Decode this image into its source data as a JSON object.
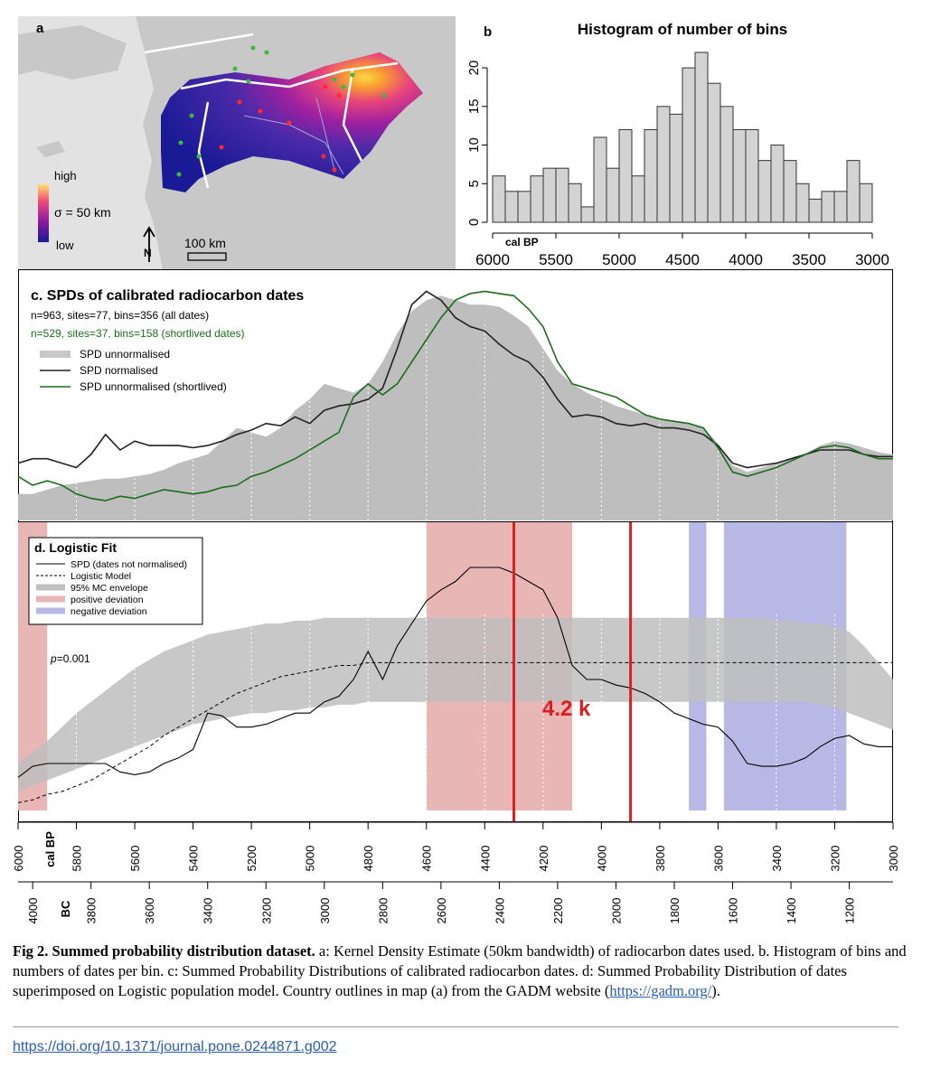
{
  "panel_a": {
    "letter": "a",
    "legend_high": "high",
    "legend_sigma": "σ = 50 km",
    "legend_low": "low",
    "scale_label": "100 km",
    "north_label": "N"
  },
  "panel_b": {
    "letter": "b",
    "title": "Histogram of number of bins",
    "axis_unit": "cal BP"
  },
  "panel_c": {
    "title": "c. SPDs of calibrated radiocarbon dates",
    "line1": "n=963, sites=77, bins=356 (all dates)",
    "line2": "n=529, sites=37, bins=158 (shortlived dates)",
    "legend": [
      "SPD unnormalised",
      "SPD normalised",
      "SPD unnormalised (shortlived)"
    ]
  },
  "panel_d": {
    "title": "d. Logistic Fit",
    "legend": [
      "SPD (dates not normalised)",
      "Logistic Model",
      "95% MC envelope",
      "positive deviation",
      "negative deviation"
    ],
    "p_label": "p",
    "p_value": "=0.001",
    "event_label": "4.2 k"
  },
  "axes": {
    "calbp_unit": "cal BP",
    "bc_unit": "BC",
    "calbp_ticks": [
      "6000",
      "5800",
      "5600",
      "5400",
      "5200",
      "5000",
      "4800",
      "4600",
      "4400",
      "4200",
      "4000",
      "3800",
      "3600",
      "3400",
      "3200",
      "3000"
    ],
    "bc_ticks": [
      "4000",
      "3800",
      "3600",
      "3400",
      "3200",
      "3000",
      "2800",
      "2600",
      "2400",
      "2200",
      "2000",
      "1800",
      "1600",
      "1400",
      "1200"
    ]
  },
  "chart_data": [
    {
      "type": "bar",
      "title": "Histogram of number of bins",
      "xlabel": "cal BP",
      "xlim": [
        6000,
        3000
      ],
      "ylim": [
        0,
        22
      ],
      "x_ticks": [
        "6000",
        "5500",
        "5000",
        "4500",
        "4000",
        "3500",
        "3000"
      ],
      "y_ticks": [
        "0",
        "5",
        "10",
        "15",
        "20"
      ],
      "bin_width": 100,
      "bin_starts": [
        6000,
        5900,
        5800,
        5700,
        5600,
        5500,
        5400,
        5300,
        5200,
        5100,
        5000,
        4900,
        4800,
        4700,
        4600,
        4500,
        4400,
        4300,
        4200,
        4100,
        4000,
        3900,
        3800,
        3700,
        3600,
        3500,
        3400,
        3300,
        3200,
        3100
      ],
      "values": [
        6,
        4,
        4,
        6,
        7,
        7,
        5,
        2,
        11,
        7,
        12,
        6,
        12,
        15,
        14,
        20,
        22,
        18,
        15,
        12,
        12,
        8,
        10,
        8,
        5,
        3,
        4,
        4,
        8,
        5
      ]
    },
    {
      "type": "line",
      "title": "c. SPDs of calibrated radiocarbon dates",
      "xlabel": "cal BP",
      "xlim": [
        6000,
        3000
      ],
      "x": [
        6000,
        5950,
        5900,
        5850,
        5800,
        5750,
        5700,
        5650,
        5600,
        5550,
        5500,
        5450,
        5400,
        5350,
        5300,
        5250,
        5200,
        5150,
        5100,
        5050,
        5000,
        4950,
        4900,
        4850,
        4800,
        4750,
        4700,
        4650,
        4600,
        4550,
        4500,
        4450,
        4400,
        4350,
        4300,
        4250,
        4200,
        4150,
        4100,
        4050,
        4000,
        3950,
        3900,
        3850,
        3800,
        3750,
        3700,
        3650,
        3600,
        3550,
        3500,
        3450,
        3400,
        3350,
        3300,
        3250,
        3200,
        3150,
        3100,
        3050,
        3000
      ],
      "series": [
        {
          "name": "SPD unnormalised",
          "values": [
            0.12,
            0.12,
            0.14,
            0.16,
            0.17,
            0.18,
            0.19,
            0.19,
            0.2,
            0.21,
            0.23,
            0.26,
            0.28,
            0.3,
            0.36,
            0.42,
            0.4,
            0.38,
            0.42,
            0.5,
            0.55,
            0.62,
            0.6,
            0.58,
            0.62,
            0.72,
            0.85,
            0.95,
            1.0,
            1.02,
            1.0,
            0.98,
            0.98,
            0.97,
            0.93,
            0.88,
            0.78,
            0.68,
            0.62,
            0.58,
            0.55,
            0.52,
            0.5,
            0.48,
            0.46,
            0.45,
            0.44,
            0.42,
            0.35,
            0.25,
            0.22,
            0.24,
            0.26,
            0.28,
            0.3,
            0.34,
            0.36,
            0.35,
            0.33,
            0.31,
            0.3
          ]
        },
        {
          "name": "SPD normalised",
          "values": [
            0.26,
            0.28,
            0.28,
            0.26,
            0.24,
            0.3,
            0.39,
            0.32,
            0.36,
            0.34,
            0.34,
            0.34,
            0.33,
            0.34,
            0.36,
            0.39,
            0.41,
            0.44,
            0.43,
            0.47,
            0.44,
            0.5,
            0.52,
            0.53,
            0.55,
            0.6,
            0.78,
            0.98,
            1.04,
            1.0,
            0.92,
            0.88,
            0.86,
            0.8,
            0.75,
            0.72,
            0.65,
            0.55,
            0.47,
            0.48,
            0.47,
            0.44,
            0.43,
            0.44,
            0.42,
            0.42,
            0.41,
            0.39,
            0.34,
            0.26,
            0.24,
            0.25,
            0.26,
            0.28,
            0.3,
            0.32,
            0.32,
            0.32,
            0.3,
            0.29,
            0.29
          ]
        },
        {
          "name": "SPD unnormalised (shortlived)",
          "values": [
            0.2,
            0.16,
            0.18,
            0.16,
            0.12,
            0.1,
            0.09,
            0.11,
            0.1,
            0.12,
            0.14,
            0.13,
            0.12,
            0.13,
            0.15,
            0.16,
            0.2,
            0.22,
            0.25,
            0.28,
            0.32,
            0.36,
            0.4,
            0.56,
            0.62,
            0.57,
            0.62,
            0.72,
            0.82,
            0.92,
            1.0,
            1.03,
            1.04,
            1.03,
            1.02,
            0.96,
            0.88,
            0.72,
            0.62,
            0.6,
            0.58,
            0.56,
            0.52,
            0.48,
            0.46,
            0.45,
            0.44,
            0.42,
            0.33,
            0.22,
            0.2,
            0.22,
            0.24,
            0.27,
            0.3,
            0.33,
            0.34,
            0.33,
            0.3,
            0.28,
            0.28
          ]
        }
      ]
    },
    {
      "type": "line",
      "title": "d. Logistic Fit",
      "xlabel": "cal BP",
      "xlim": [
        6000,
        3000
      ],
      "ylim": [
        0,
        1
      ],
      "x": [
        6000,
        5950,
        5900,
        5850,
        5800,
        5750,
        5700,
        5650,
        5600,
        5550,
        5500,
        5450,
        5400,
        5350,
        5300,
        5250,
        5200,
        5150,
        5100,
        5050,
        5000,
        4950,
        4900,
        4850,
        4800,
        4750,
        4700,
        4650,
        4600,
        4550,
        4500,
        4450,
        4400,
        4350,
        4300,
        4250,
        4200,
        4150,
        4100,
        4050,
        4000,
        3950,
        3900,
        3850,
        3800,
        3750,
        3700,
        3650,
        3600,
        3550,
        3500,
        3450,
        3400,
        3350,
        3300,
        3250,
        3200,
        3150,
        3100,
        3050,
        3000
      ],
      "series": [
        {
          "name": "SPD (dates not normalised)",
          "values": [
            0.15,
            0.19,
            0.2,
            0.2,
            0.2,
            0.2,
            0.2,
            0.17,
            0.16,
            0.17,
            0.2,
            0.22,
            0.25,
            0.38,
            0.37,
            0.33,
            0.33,
            0.34,
            0.36,
            0.38,
            0.38,
            0.42,
            0.44,
            0.5,
            0.6,
            0.5,
            0.62,
            0.7,
            0.78,
            0.82,
            0.85,
            0.9,
            0.9,
            0.9,
            0.88,
            0.85,
            0.82,
            0.72,
            0.55,
            0.5,
            0.5,
            0.48,
            0.47,
            0.45,
            0.42,
            0.38,
            0.36,
            0.34,
            0.33,
            0.28,
            0.2,
            0.19,
            0.19,
            0.2,
            0.22,
            0.26,
            0.29,
            0.3,
            0.27,
            0.26,
            0.26
          ]
        },
        {
          "name": "Logistic Model",
          "values": [
            0.06,
            0.07,
            0.09,
            0.1,
            0.12,
            0.14,
            0.17,
            0.2,
            0.23,
            0.26,
            0.3,
            0.33,
            0.36,
            0.39,
            0.42,
            0.45,
            0.47,
            0.49,
            0.51,
            0.52,
            0.53,
            0.54,
            0.55,
            0.55,
            0.56,
            0.56,
            0.56,
            0.56,
            0.56,
            0.56,
            0.56,
            0.56,
            0.56,
            0.56,
            0.56,
            0.56,
            0.56,
            0.56,
            0.56,
            0.56,
            0.56,
            0.56,
            0.56,
            0.56,
            0.56,
            0.56,
            0.56,
            0.56,
            0.56,
            0.56,
            0.56,
            0.56,
            0.56,
            0.56,
            0.56,
            0.56,
            0.56,
            0.56,
            0.56,
            0.56,
            0.56
          ]
        }
      ],
      "envelope": {
        "name": "95% MC envelope",
        "lower": [
          0.1,
          0.12,
          0.14,
          0.16,
          0.18,
          0.2,
          0.22,
          0.24,
          0.26,
          0.28,
          0.3,
          0.32,
          0.34,
          0.35,
          0.36,
          0.37,
          0.38,
          0.38,
          0.39,
          0.39,
          0.4,
          0.4,
          0.41,
          0.41,
          0.42,
          0.42,
          0.42,
          0.42,
          0.42,
          0.42,
          0.42,
          0.42,
          0.42,
          0.42,
          0.42,
          0.42,
          0.42,
          0.42,
          0.42,
          0.42,
          0.42,
          0.42,
          0.42,
          0.42,
          0.42,
          0.42,
          0.42,
          0.42,
          0.42,
          0.42,
          0.42,
          0.42,
          0.42,
          0.42,
          0.42,
          0.41,
          0.4,
          0.38,
          0.36,
          0.34,
          0.32
        ],
        "upper": [
          0.2,
          0.24,
          0.28,
          0.33,
          0.38,
          0.42,
          0.46,
          0.5,
          0.54,
          0.57,
          0.6,
          0.62,
          0.64,
          0.66,
          0.67,
          0.68,
          0.69,
          0.7,
          0.7,
          0.71,
          0.71,
          0.72,
          0.72,
          0.72,
          0.72,
          0.72,
          0.72,
          0.72,
          0.72,
          0.72,
          0.72,
          0.72,
          0.72,
          0.72,
          0.72,
          0.72,
          0.72,
          0.72,
          0.72,
          0.72,
          0.72,
          0.72,
          0.72,
          0.72,
          0.72,
          0.72,
          0.72,
          0.72,
          0.72,
          0.72,
          0.72,
          0.72,
          0.71,
          0.71,
          0.7,
          0.7,
          0.69,
          0.67,
          0.62,
          0.56,
          0.5
        ]
      },
      "positive_deviation": [
        [
          6000,
          5900
        ],
        [
          4600,
          4100
        ]
      ],
      "negative_deviation": [
        [
          3700,
          3640
        ],
        [
          3580,
          3160
        ]
      ],
      "event_lines": [
        4300,
        3900
      ],
      "annotation": "4.2 k"
    }
  ],
  "caption": {
    "label": "Fig 2. Summed probability distribution dataset.",
    "text": " a: Kernel Density Estimate (50km bandwidth) of radiocarbon dates used. b. Histogram of bins and numbers of dates per bin. c: Summed Probability Distributions of calibrated radiocarbon dates. d: Summed Probability Distribution of dates superimposed on Logistic population model. Country outlines in map (a) from the GADM website (",
    "link": "https://gadm.org/",
    "tail": ")."
  },
  "doi": "https://doi.org/10.1371/journal.pone.0244871.g002",
  "colors": {
    "map_land": "#c8c8c8",
    "map_sea": "#dcdcdc",
    "hist_bar": "#d3d3d3",
    "spd_fill": "#bebebe",
    "shortlived_line": "#1e6b1e",
    "positive": "#e9b6b6",
    "negative": "#b8b8e6",
    "event_line": "#dd1f1f",
    "link": "#2a5db0"
  }
}
